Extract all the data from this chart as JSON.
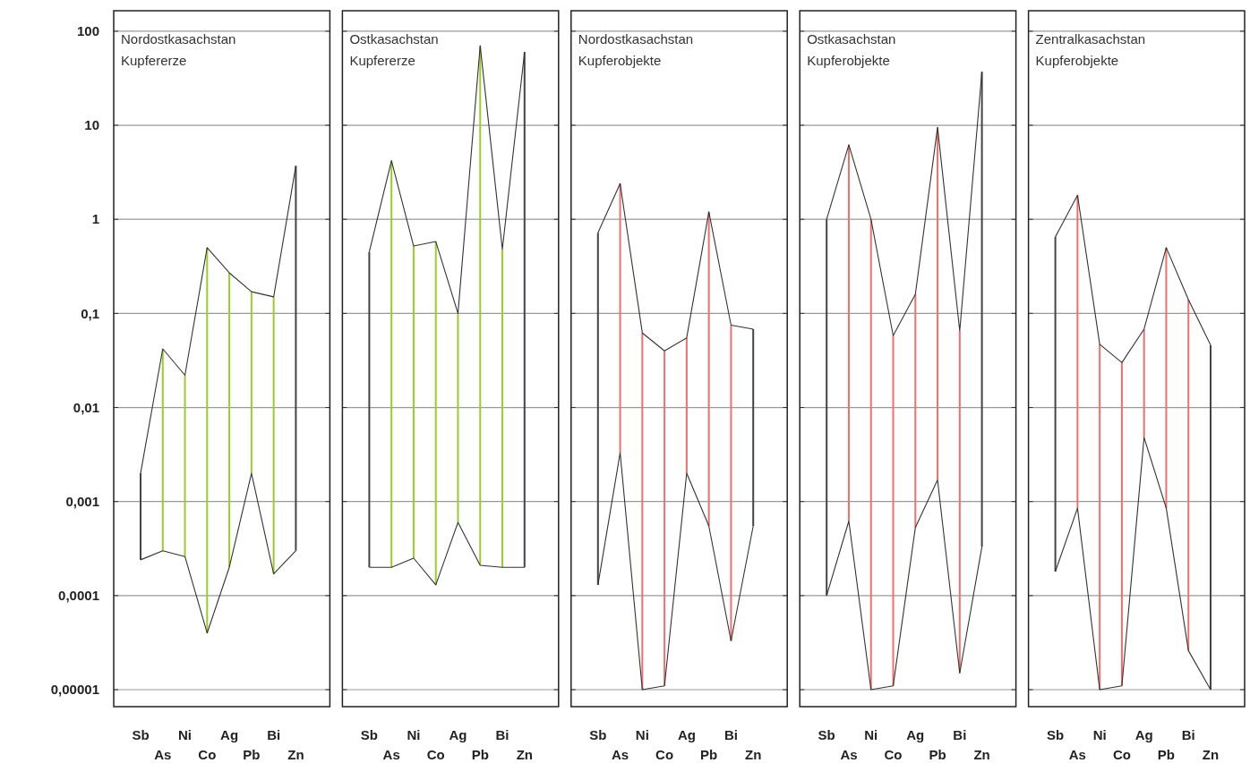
{
  "chart_data": [
    {
      "type": "line",
      "title": "Nordostkasachstan",
      "subtitle": "Kupfererze",
      "categories": [
        "Sb",
        "As",
        "Ni",
        "Co",
        "Ag",
        "Pb",
        "Bi",
        "Zn"
      ],
      "log": "y",
      "grid": "y",
      "ylim": [
        6.6e-06,
        165
      ],
      "yticks": [
        {
          "value": 1e-05,
          "label": "0,00001"
        },
        {
          "value": 0.0001,
          "label": "0,0001"
        },
        {
          "value": 0.001,
          "label": "0,001"
        },
        {
          "value": 0.01,
          "label": "0,01"
        },
        {
          "value": 0.1,
          "label": "0,1"
        },
        1,
        10,
        100
      ],
      "series": [
        {
          "type": "bar",
          "base": [
            0.00024,
            0.0003,
            0.00026,
            4e-05,
            0.0002,
            0.002,
            0.00017,
            0.0003
          ],
          "values": [
            0.00176,
            0.0417,
            0.02174,
            0.49996,
            0.2698,
            0.168,
            0.14983,
            3.6997
          ],
          "colors": [
            "#444444",
            "#9ccc2c",
            "#9ccc2c",
            "#9ccc2c",
            "#9ccc2c",
            "#9ccc2c",
            "#9ccc2c",
            "#444444"
          ]
        },
        {
          "color": "#333333",
          "values": [
            0.002,
            0.042,
            0.022,
            0.5,
            0.27,
            0.17,
            0.15,
            3.7
          ]
        },
        {
          "color": "#333333",
          "values": [
            0.00024,
            0.0003,
            0.00026,
            4e-05,
            0.0002,
            0.002,
            0.00017,
            0.0003
          ]
        }
      ]
    },
    {
      "type": "line",
      "title": "Ostkasachstan",
      "subtitle": "Kupfererze",
      "categories": [
        "Sb",
        "As",
        "Ni",
        "Co",
        "Ag",
        "Pb",
        "Bi",
        "Zn"
      ],
      "log": "y",
      "grid": "y",
      "tick_labels": "x",
      "ylim": [
        6.6e-06,
        165
      ],
      "yticks": [
        {
          "value": 1e-05,
          "label": null
        },
        {
          "value": 0.0001,
          "label": null
        },
        {
          "value": 0.001,
          "label": null
        },
        {
          "value": 0.01,
          "label": null
        },
        {
          "value": 0.1,
          "label": null
        },
        {
          "value": 1,
          "label": null
        },
        {
          "value": 10,
          "label": null
        },
        {
          "value": 100,
          "label": null
        }
      ],
      "series": [
        {
          "type": "bar",
          "base": [
            0.0002,
            0.0002,
            0.00025,
            0.00013,
            0.0006,
            0.00021,
            0.0002,
            0.0002
          ],
          "values": [
            0.4498,
            4.1998,
            0.51975,
            0.57987,
            0.0994,
            69.99979,
            0.4798,
            59.9998
          ],
          "colors": [
            "#444444",
            "#9ccc2c",
            "#9ccc2c",
            "#9ccc2c",
            "#9ccc2c",
            "#9ccc2c",
            "#9ccc2c",
            "#444444"
          ]
        },
        {
          "color": "#333333",
          "values": [
            0.45,
            4.2,
            0.52,
            0.58,
            0.1,
            70,
            0.48,
            60
          ]
        },
        {
          "color": "#333333",
          "values": [
            0.0002,
            0.0002,
            0.00025,
            0.00013,
            0.0006,
            0.00021,
            0.0002,
            0.0002
          ]
        }
      ]
    },
    {
      "type": "line",
      "title": "Nordostkasachstan",
      "subtitle": "Kupferobjekte",
      "categories": [
        "Sb",
        "As",
        "Ni",
        "Co",
        "Ag",
        "Pb",
        "Bi",
        "Zn"
      ],
      "log": "y",
      "grid": "y",
      "tick_labels": "x",
      "ylim": [
        6.6e-06,
        165
      ],
      "yticks": [
        {
          "value": 1e-05,
          "label": null
        },
        {
          "value": 0.0001,
          "label": null
        },
        {
          "value": 0.001,
          "label": null
        },
        {
          "value": 0.01,
          "label": null
        },
        {
          "value": 0.1,
          "label": null
        },
        {
          "value": 1,
          "label": null
        },
        {
          "value": 10,
          "label": null
        },
        {
          "value": 100,
          "label": null
        }
      ],
      "series": [
        {
          "type": "bar",
          "base": [
            0.00013,
            0.0033,
            1e-05,
            1.1e-05,
            0.002,
            0.00055,
            3.3e-05,
            0.00055
          ],
          "values": [
            0.71987,
            2.3967,
            0.06199,
            0.039989,
            0.053,
            1.19945,
            0.074967,
            0.06745
          ],
          "colors": [
            "#444444",
            "#f07070",
            "#f07070",
            "#f07070",
            "#f07070",
            "#f07070",
            "#f07070",
            "#444444"
          ]
        },
        {
          "color": "#333333",
          "values": [
            0.72,
            2.4,
            0.062,
            0.04,
            0.055,
            1.2,
            0.075,
            0.068
          ]
        },
        {
          "color": "#333333",
          "values": [
            0.00013,
            0.0033,
            1e-05,
            1.1e-05,
            0.002,
            0.00055,
            3.3e-05,
            0.00055
          ]
        }
      ]
    },
    {
      "type": "line",
      "title": "Ostkasachstan",
      "subtitle": "Kupferobjekte",
      "categories": [
        "Sb",
        "As",
        "Ni",
        "Co",
        "Ag",
        "Pb",
        "Bi",
        "Zn"
      ],
      "log": "y",
      "grid": "y",
      "tick_labels": "x",
      "ylim": [
        6.6e-06,
        165
      ],
      "yticks": [
        {
          "value": 1e-05,
          "label": null
        },
        {
          "value": 0.0001,
          "label": null
        },
        {
          "value": 0.001,
          "label": null
        },
        {
          "value": 0.01,
          "label": null
        },
        {
          "value": 0.1,
          "label": null
        },
        {
          "value": 1,
          "label": null
        },
        {
          "value": 10,
          "label": null
        },
        {
          "value": 100,
          "label": null
        }
      ],
      "series": [
        {
          "type": "bar",
          "base": [
            0.0001,
            0.00062,
            1e-05,
            1.1e-05,
            0.00053,
            0.0017,
            1.5e-05,
            0.00033
          ],
          "values": [
            0.9999,
            6.19938,
            0.99999,
            0.057989,
            0.15947,
            9.4983,
            0.064985,
            36.99967
          ],
          "colors": [
            "#444444",
            "#f07070",
            "#f07070",
            "#f07070",
            "#f07070",
            "#f07070",
            "#f07070",
            "#444444"
          ]
        },
        {
          "color": "#333333",
          "values": [
            1.0,
            6.2,
            1.0,
            0.058,
            0.16,
            9.5,
            0.065,
            37
          ]
        },
        {
          "color": "#333333",
          "values": [
            0.0001,
            0.00062,
            1e-05,
            1.1e-05,
            0.00053,
            0.0017,
            1.5e-05,
            0.00033
          ]
        }
      ]
    },
    {
      "type": "line",
      "title": "Zentralkasachstan",
      "subtitle": "Kupferobjekte",
      "categories": [
        "Sb",
        "As",
        "Ni",
        "Co",
        "Ag",
        "Pb",
        "Bi",
        "Zn"
      ],
      "log": "y",
      "grid": "y",
      "tick_labels": "x",
      "ylim": [
        6.6e-06,
        165
      ],
      "yticks": [
        {
          "value": 1e-05,
          "label": null
        },
        {
          "value": 0.0001,
          "label": null
        },
        {
          "value": 0.001,
          "label": null
        },
        {
          "value": 0.01,
          "label": null
        },
        {
          "value": 0.1,
          "label": null
        },
        {
          "value": 1,
          "label": null
        },
        {
          "value": 10,
          "label": null
        },
        {
          "value": 100,
          "label": null
        }
      ],
      "series": [
        {
          "type": "bar",
          "base": [
            0.00018,
            0.00085,
            1e-05,
            1.1e-05,
            0.0048,
            0.00085,
            2.6e-05,
            1e-05
          ],
          "values": [
            0.64982,
            1.79915,
            0.04699,
            0.029989,
            0.0632,
            0.49915,
            0.139974,
            0.04599
          ],
          "colors": [
            "#444444",
            "#f07070",
            "#f07070",
            "#f07070",
            "#f07070",
            "#f07070",
            "#f07070",
            "#444444"
          ]
        },
        {
          "color": "#333333",
          "values": [
            0.65,
            1.8,
            0.047,
            0.03,
            0.068,
            0.5,
            0.14,
            0.046
          ]
        },
        {
          "color": "#333333",
          "values": [
            0.00018,
            0.00085,
            1e-05,
            1.1e-05,
            0.0048,
            0.00085,
            2.6e-05,
            1e-05
          ]
        }
      ]
    }
  ]
}
